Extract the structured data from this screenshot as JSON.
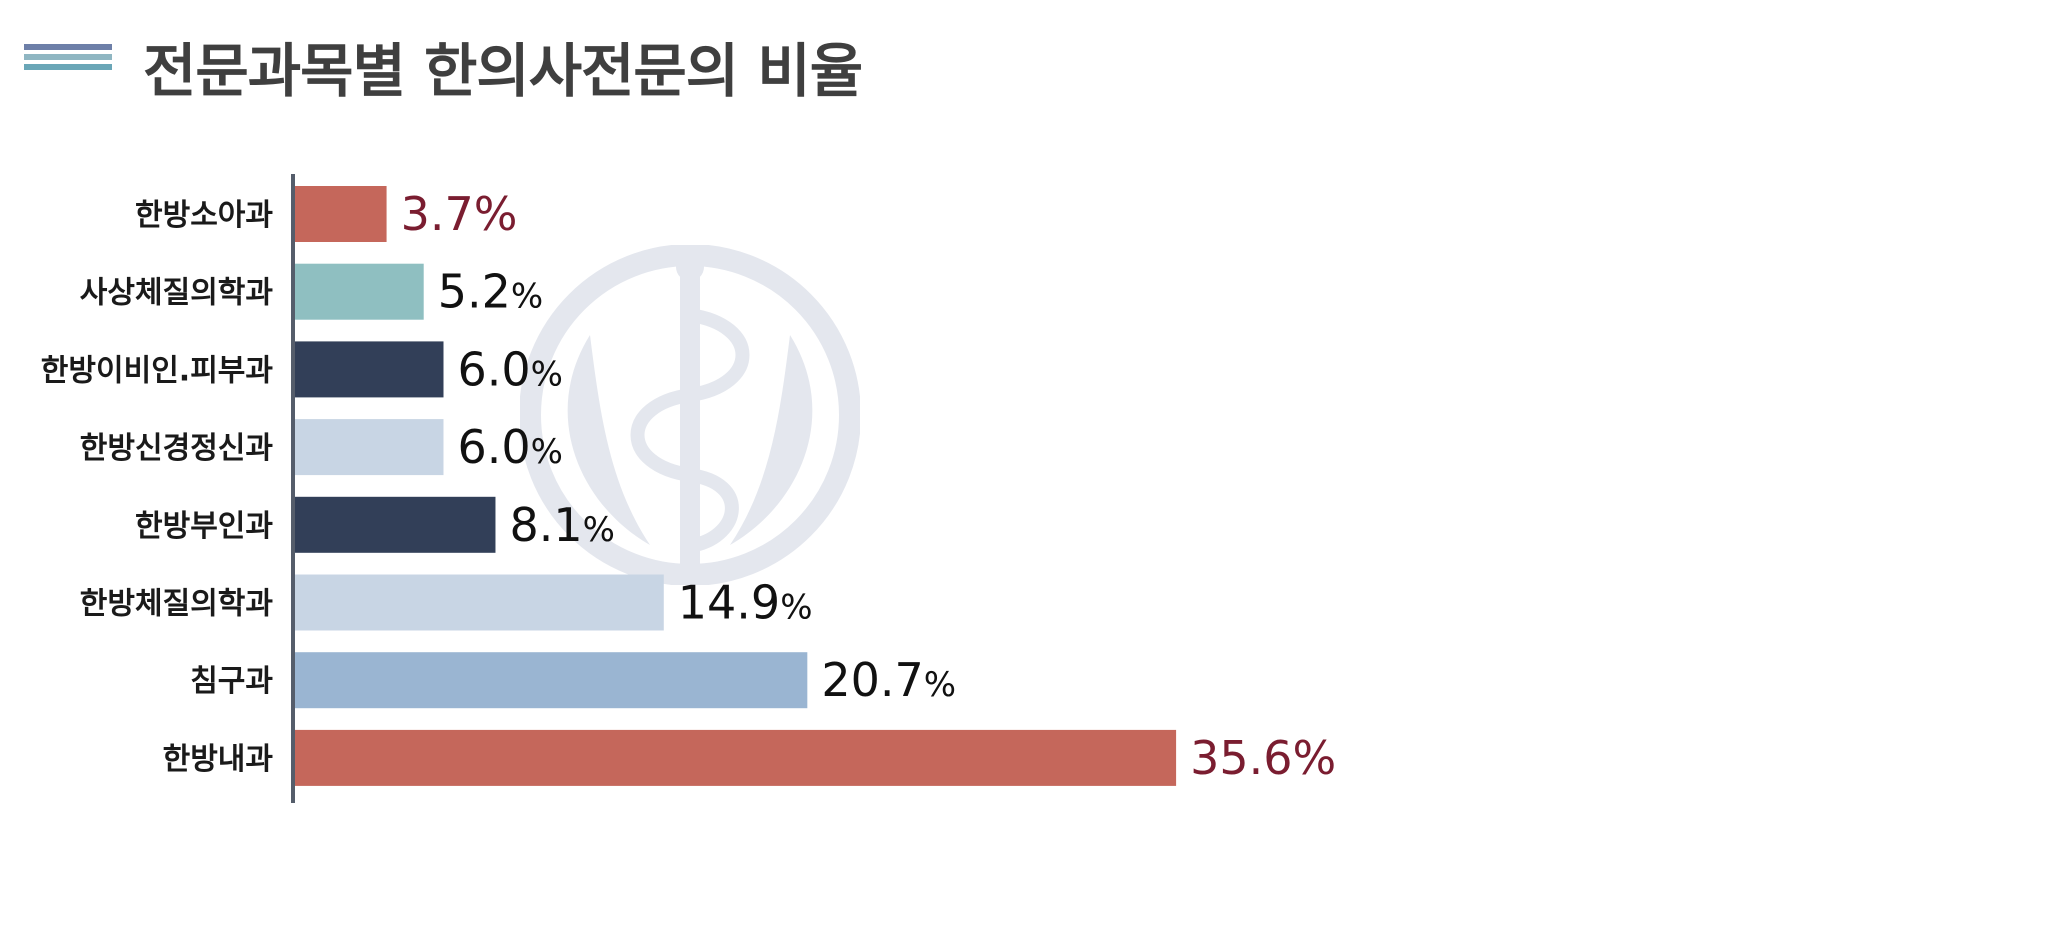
{
  "title": "전문과목별 한의사전문의 비율",
  "colors": {
    "title_text": "#3f3f3f",
    "icon_lines": [
      "#6d7fa8",
      "#8fb6c2",
      "#6aa6b7"
    ],
    "axis": "#555d6b",
    "highlight_text": "#7a1d30",
    "normal_text": "#111111",
    "watermark": "#e4e7ee"
  },
  "chart_data": {
    "type": "bar",
    "orientation": "horizontal",
    "unit": "%",
    "title": "전문과목별 한의사전문의 비율",
    "xlabel": "",
    "ylabel": "",
    "grid": false,
    "legend": "none",
    "xlim": [
      0,
      40
    ],
    "categories": [
      "한방소아과",
      "사상체질의학과",
      "한방이비인.피부과",
      "한방신경정신과",
      "한방부인과",
      "한방체질의학과",
      "침구과",
      "한방내과"
    ],
    "values": [
      3.7,
      5.2,
      6.0,
      6.0,
      8.1,
      14.9,
      20.7,
      35.6
    ],
    "value_labels": [
      "3.7",
      "5.2",
      "6.0",
      "6.0",
      "8.1",
      "14.9",
      "20.7",
      "35.6"
    ],
    "bar_colors": [
      "#c5675b",
      "#8fbfc1",
      "#323f58",
      "#c8d5e4",
      "#323f58",
      "#c8d5e4",
      "#9ab5d2",
      "#c5675b"
    ],
    "highlighted": [
      true,
      false,
      false,
      false,
      false,
      false,
      false,
      true
    ]
  }
}
